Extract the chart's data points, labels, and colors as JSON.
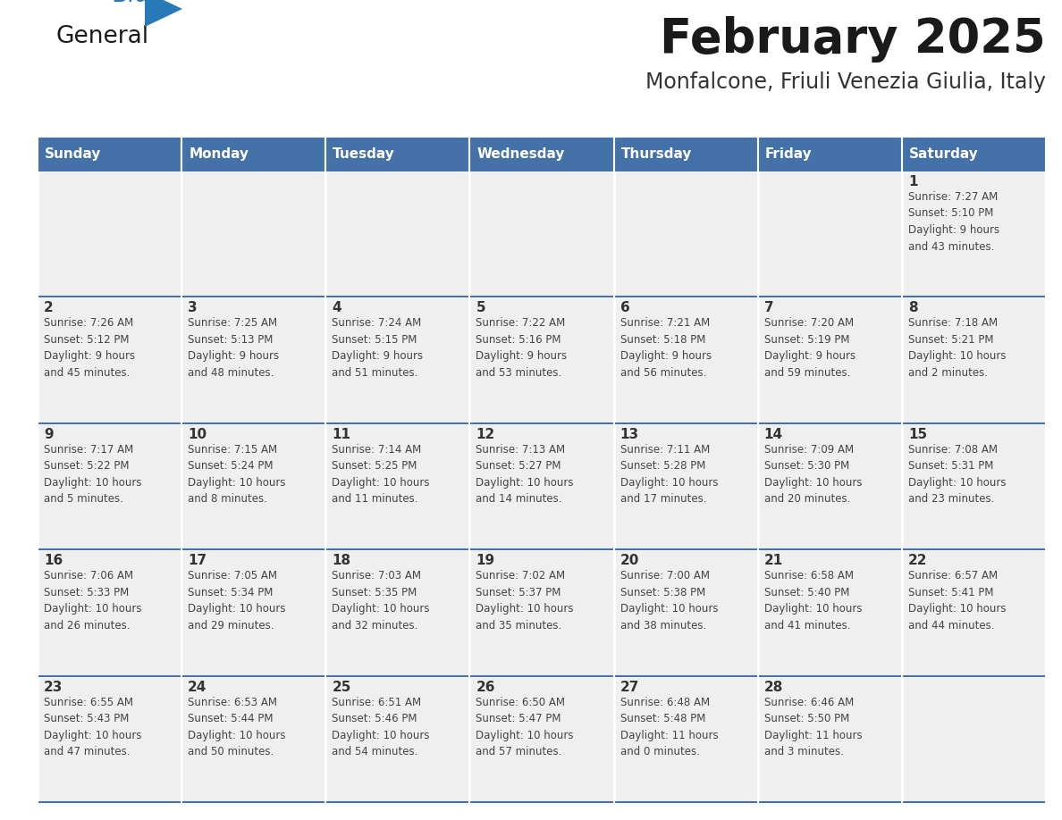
{
  "title": "February 2025",
  "subtitle": "Monfalcone, Friuli Venezia Giulia, Italy",
  "days_of_week": [
    "Sunday",
    "Monday",
    "Tuesday",
    "Wednesday",
    "Thursday",
    "Friday",
    "Saturday"
  ],
  "header_bg": "#4472a8",
  "header_text": "#ffffff",
  "cell_bg": "#efefef",
  "cell_border_color": "#4472a8",
  "cell_white_border": "#ffffff",
  "day_num_color": "#333333",
  "text_color": "#444444",
  "title_color": "#1a1a1a",
  "subtitle_color": "#333333",
  "logo_general_color": "#1a1a1a",
  "logo_blue_color": "#2779b8",
  "figsize": [
    11.88,
    9.18
  ],
  "weeks": [
    [
      {
        "day": null,
        "info": null
      },
      {
        "day": null,
        "info": null
      },
      {
        "day": null,
        "info": null
      },
      {
        "day": null,
        "info": null
      },
      {
        "day": null,
        "info": null
      },
      {
        "day": null,
        "info": null
      },
      {
        "day": 1,
        "info": "Sunrise: 7:27 AM\nSunset: 5:10 PM\nDaylight: 9 hours\nand 43 minutes."
      }
    ],
    [
      {
        "day": 2,
        "info": "Sunrise: 7:26 AM\nSunset: 5:12 PM\nDaylight: 9 hours\nand 45 minutes."
      },
      {
        "day": 3,
        "info": "Sunrise: 7:25 AM\nSunset: 5:13 PM\nDaylight: 9 hours\nand 48 minutes."
      },
      {
        "day": 4,
        "info": "Sunrise: 7:24 AM\nSunset: 5:15 PM\nDaylight: 9 hours\nand 51 minutes."
      },
      {
        "day": 5,
        "info": "Sunrise: 7:22 AM\nSunset: 5:16 PM\nDaylight: 9 hours\nand 53 minutes."
      },
      {
        "day": 6,
        "info": "Sunrise: 7:21 AM\nSunset: 5:18 PM\nDaylight: 9 hours\nand 56 minutes."
      },
      {
        "day": 7,
        "info": "Sunrise: 7:20 AM\nSunset: 5:19 PM\nDaylight: 9 hours\nand 59 minutes."
      },
      {
        "day": 8,
        "info": "Sunrise: 7:18 AM\nSunset: 5:21 PM\nDaylight: 10 hours\nand 2 minutes."
      }
    ],
    [
      {
        "day": 9,
        "info": "Sunrise: 7:17 AM\nSunset: 5:22 PM\nDaylight: 10 hours\nand 5 minutes."
      },
      {
        "day": 10,
        "info": "Sunrise: 7:15 AM\nSunset: 5:24 PM\nDaylight: 10 hours\nand 8 minutes."
      },
      {
        "day": 11,
        "info": "Sunrise: 7:14 AM\nSunset: 5:25 PM\nDaylight: 10 hours\nand 11 minutes."
      },
      {
        "day": 12,
        "info": "Sunrise: 7:13 AM\nSunset: 5:27 PM\nDaylight: 10 hours\nand 14 minutes."
      },
      {
        "day": 13,
        "info": "Sunrise: 7:11 AM\nSunset: 5:28 PM\nDaylight: 10 hours\nand 17 minutes."
      },
      {
        "day": 14,
        "info": "Sunrise: 7:09 AM\nSunset: 5:30 PM\nDaylight: 10 hours\nand 20 minutes."
      },
      {
        "day": 15,
        "info": "Sunrise: 7:08 AM\nSunset: 5:31 PM\nDaylight: 10 hours\nand 23 minutes."
      }
    ],
    [
      {
        "day": 16,
        "info": "Sunrise: 7:06 AM\nSunset: 5:33 PM\nDaylight: 10 hours\nand 26 minutes."
      },
      {
        "day": 17,
        "info": "Sunrise: 7:05 AM\nSunset: 5:34 PM\nDaylight: 10 hours\nand 29 minutes."
      },
      {
        "day": 18,
        "info": "Sunrise: 7:03 AM\nSunset: 5:35 PM\nDaylight: 10 hours\nand 32 minutes."
      },
      {
        "day": 19,
        "info": "Sunrise: 7:02 AM\nSunset: 5:37 PM\nDaylight: 10 hours\nand 35 minutes."
      },
      {
        "day": 20,
        "info": "Sunrise: 7:00 AM\nSunset: 5:38 PM\nDaylight: 10 hours\nand 38 minutes."
      },
      {
        "day": 21,
        "info": "Sunrise: 6:58 AM\nSunset: 5:40 PM\nDaylight: 10 hours\nand 41 minutes."
      },
      {
        "day": 22,
        "info": "Sunrise: 6:57 AM\nSunset: 5:41 PM\nDaylight: 10 hours\nand 44 minutes."
      }
    ],
    [
      {
        "day": 23,
        "info": "Sunrise: 6:55 AM\nSunset: 5:43 PM\nDaylight: 10 hours\nand 47 minutes."
      },
      {
        "day": 24,
        "info": "Sunrise: 6:53 AM\nSunset: 5:44 PM\nDaylight: 10 hours\nand 50 minutes."
      },
      {
        "day": 25,
        "info": "Sunrise: 6:51 AM\nSunset: 5:46 PM\nDaylight: 10 hours\nand 54 minutes."
      },
      {
        "day": 26,
        "info": "Sunrise: 6:50 AM\nSunset: 5:47 PM\nDaylight: 10 hours\nand 57 minutes."
      },
      {
        "day": 27,
        "info": "Sunrise: 6:48 AM\nSunset: 5:48 PM\nDaylight: 11 hours\nand 0 minutes."
      },
      {
        "day": 28,
        "info": "Sunrise: 6:46 AM\nSunset: 5:50 PM\nDaylight: 11 hours\nand 3 minutes."
      },
      {
        "day": null,
        "info": null
      }
    ]
  ]
}
